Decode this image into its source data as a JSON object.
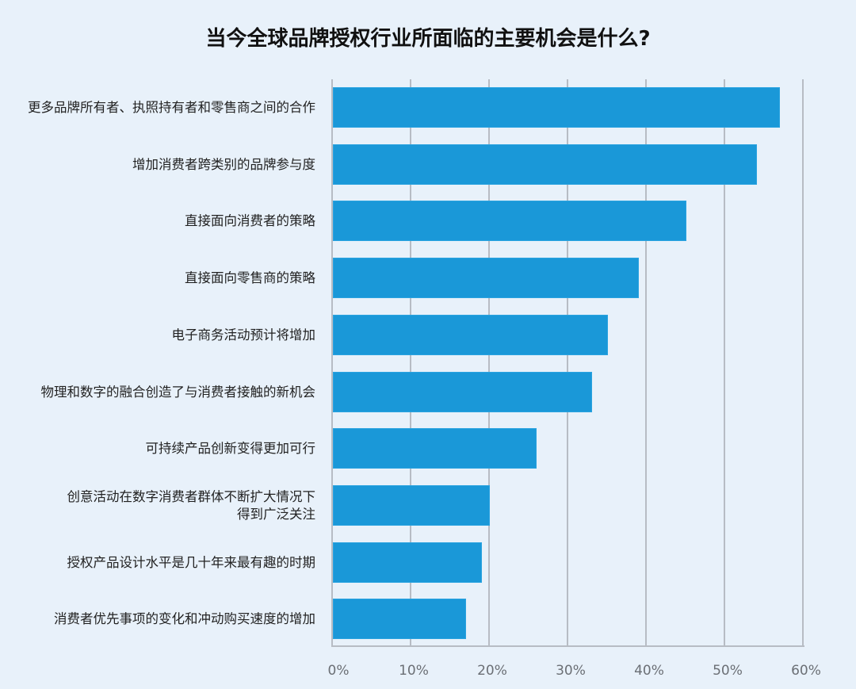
{
  "chart_data": {
    "type": "bar",
    "orientation": "horizontal",
    "title": "当今全球品牌授权行业所面临的主要机会是什么?",
    "xlabel": "",
    "ylabel": "",
    "xlim": [
      0,
      60
    ],
    "grid": true,
    "legend": null,
    "bar_color": "#1a98d8",
    "x_ticks": [
      "0%",
      "10%",
      "20%",
      "30%",
      "40%",
      "50%",
      "60%"
    ],
    "categories": [
      "更多品牌所有者、执照持有者和零售商之间的合作",
      "增加消费者跨类别的品牌参与度",
      "直接面向消费者的策略",
      "直接面向零售商的策略",
      "电子商务活动预计将增加",
      "物理和数字的融合创造了与消费者接触的新机会",
      "可持续产品创新变得更加可行",
      "创意活动在数字消费者群体不断扩大情况下得到广泛关注",
      "授权产品设计水平是几十年来最有趣的时期",
      "消费者优先事项的变化和冲动购买速度的增加"
    ],
    "label_lines": [
      [
        "更多品牌所有者、执照持有者和零售商之间的合作"
      ],
      [
        "增加消费者跨类别的品牌参与度"
      ],
      [
        "直接面向消费者的策略"
      ],
      [
        "直接面向零售商的策略"
      ],
      [
        "电子商务活动预计将增加"
      ],
      [
        "物理和数字的融合创造了与消费者接触的新机会"
      ],
      [
        "可持续产品创新变得更加可行"
      ],
      [
        "创意活动在数字消费者群体不断扩大情况下",
        "得到广泛关注"
      ],
      [
        "授权产品设计水平是几十年来最有趣的时期"
      ],
      [
        "消费者优先事项的变化和冲动购买速度的增加"
      ]
    ],
    "values": [
      57,
      54,
      45,
      39,
      35,
      33,
      26,
      20,
      19,
      17
    ],
    "unit": "%"
  }
}
